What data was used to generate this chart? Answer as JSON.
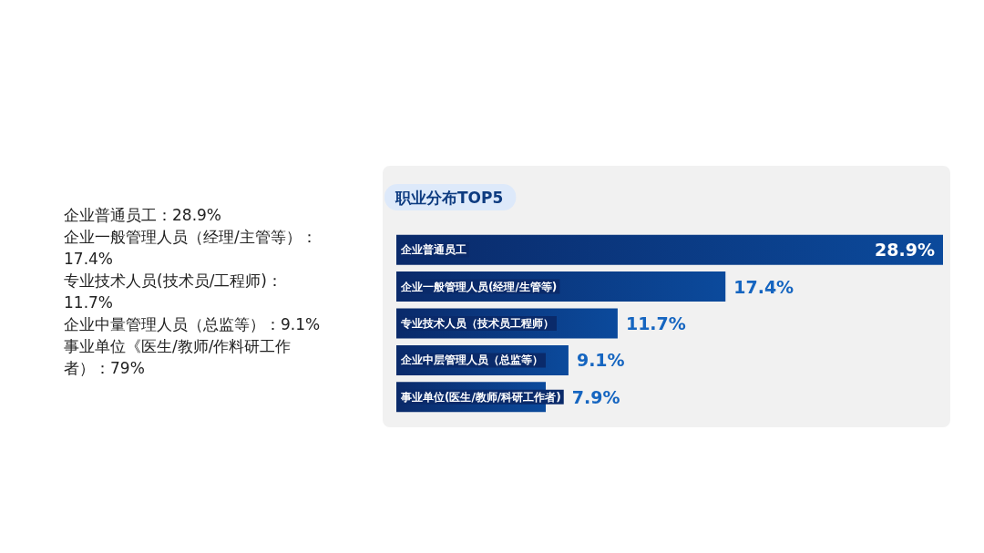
{
  "chart_data": {
    "type": "bar",
    "orientation": "horizontal",
    "title": "职业分布TOP5",
    "categories": [
      "企业普通员工",
      "企业一般管理人员(经理/生管等)",
      "专业技术人员（技术员工程师）",
      "企业中层管理人员（总监等）",
      "事业单位(医生/教师/科研工作者)"
    ],
    "values": [
      28.9,
      17.4,
      11.7,
      9.1,
      7.9
    ],
    "value_labels": [
      "28.9%",
      "17.4%",
      "11.7%",
      "9.1%",
      "7.9%"
    ],
    "color": "#0b4a9c",
    "tick_labels": "y",
    "annotations": [
      "企业普通员工：28.9%",
      "企业一般管理人员（经理/主管等）：17.4%",
      "专业技术人员(技术员/工程师)：11.7%",
      "企业中量管理人员（总监等）：9.1%",
      "事业单位《医生/教师/作料研工作者）：79%"
    ]
  }
}
